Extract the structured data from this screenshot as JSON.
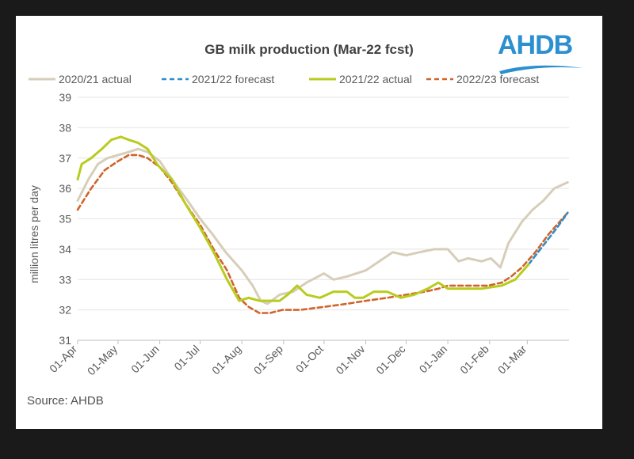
{
  "header": {
    "title": "GB milk production (Mar-22 fcst)",
    "logo_text": "AHDB",
    "source": "Source: AHDB"
  },
  "colors": {
    "s2021": "#d7ceb9",
    "f2122": "#2e8ec8",
    "a2122": "#b8cc1e",
    "f2223": "#d0642a"
  },
  "chart_data": {
    "type": "line",
    "title": "GB milk production (Mar-22 fcst)",
    "ylabel": "million litres per day",
    "ylim": [
      31,
      39
    ],
    "yticks": [
      31,
      32,
      33,
      34,
      35,
      36,
      37,
      38,
      39
    ],
    "x_ticks": [
      "01-Apr",
      "01-May",
      "01-Jun",
      "01-Jul",
      "01-Aug",
      "01-Sep",
      "01-Oct",
      "01-Nov",
      "01-Dec",
      "01-Jan",
      "01-Feb",
      "01-Mar"
    ],
    "legend": "top",
    "series": [
      {
        "name": "2020/21 actual",
        "style": "solid",
        "color": "#d7ceb9",
        "x": [
          0,
          8,
          15,
          22,
          30,
          38,
          45,
          52,
          61,
          70,
          80,
          91,
          100,
          110,
          122,
          130,
          136,
          141,
          150,
          160,
          170,
          183,
          190,
          200,
          214,
          224,
          234,
          244,
          254,
          265,
          275,
          283,
          290,
          300,
          307,
          314,
          320,
          330,
          338,
          346,
          354,
          364
        ],
        "y": [
          35.6,
          36.3,
          36.8,
          37.0,
          37.1,
          37.2,
          37.3,
          37.2,
          36.9,
          36.3,
          35.7,
          35.0,
          34.5,
          33.9,
          33.3,
          32.8,
          32.3,
          32.2,
          32.5,
          32.6,
          32.9,
          33.2,
          33.0,
          33.1,
          33.3,
          33.6,
          33.9,
          33.8,
          33.9,
          34.0,
          34.0,
          33.6,
          33.7,
          33.6,
          33.7,
          33.4,
          34.2,
          34.9,
          35.3,
          35.6,
          36.0,
          36.2
        ]
      },
      {
        "name": "2021/22 forecast",
        "style": "dashed",
        "color": "#2e8ec8",
        "x": [
          335,
          342,
          349,
          356,
          364
        ],
        "y": [
          33.5,
          33.9,
          34.3,
          34.7,
          35.2
        ]
      },
      {
        "name": "2021/22 actual",
        "style": "solid",
        "color": "#b8cc1e",
        "x": [
          0,
          3,
          10,
          18,
          25,
          32,
          38,
          45,
          52,
          59,
          61,
          70,
          80,
          91,
          101,
          111,
          120,
          127,
          135,
          143,
          150,
          156,
          163,
          170,
          180,
          190,
          200,
          206,
          212,
          220,
          230,
          240,
          250,
          260,
          268,
          275,
          285,
          300,
          315,
          325,
          335
        ],
        "y": [
          36.3,
          36.8,
          37.0,
          37.3,
          37.6,
          37.7,
          37.6,
          37.5,
          37.3,
          36.8,
          36.7,
          36.3,
          35.5,
          34.7,
          33.9,
          33.0,
          32.3,
          32.4,
          32.3,
          32.3,
          32.3,
          32.5,
          32.8,
          32.5,
          32.4,
          32.6,
          32.6,
          32.4,
          32.4,
          32.6,
          32.6,
          32.4,
          32.5,
          32.7,
          32.9,
          32.7,
          32.7,
          32.7,
          32.8,
          33.0,
          33.5
        ]
      },
      {
        "name": "2022/23 forecast",
        "style": "dashed",
        "color": "#d0642a",
        "x": [
          0,
          10,
          20,
          30,
          38,
          45,
          52,
          61,
          70,
          80,
          91,
          101,
          111,
          120,
          127,
          135,
          143,
          152,
          165,
          183,
          200,
          214,
          230,
          244,
          258,
          268,
          275,
          290,
          305,
          315,
          322,
          330,
          340,
          350,
          364
        ],
        "y": [
          35.3,
          36.0,
          36.6,
          36.9,
          37.1,
          37.1,
          37.0,
          36.7,
          36.2,
          35.5,
          34.8,
          34.0,
          33.3,
          32.4,
          32.1,
          31.9,
          31.9,
          32.0,
          32.0,
          32.1,
          32.2,
          32.3,
          32.4,
          32.5,
          32.6,
          32.7,
          32.8,
          32.8,
          32.8,
          32.9,
          33.1,
          33.4,
          33.9,
          34.5,
          35.2
        ]
      }
    ]
  }
}
